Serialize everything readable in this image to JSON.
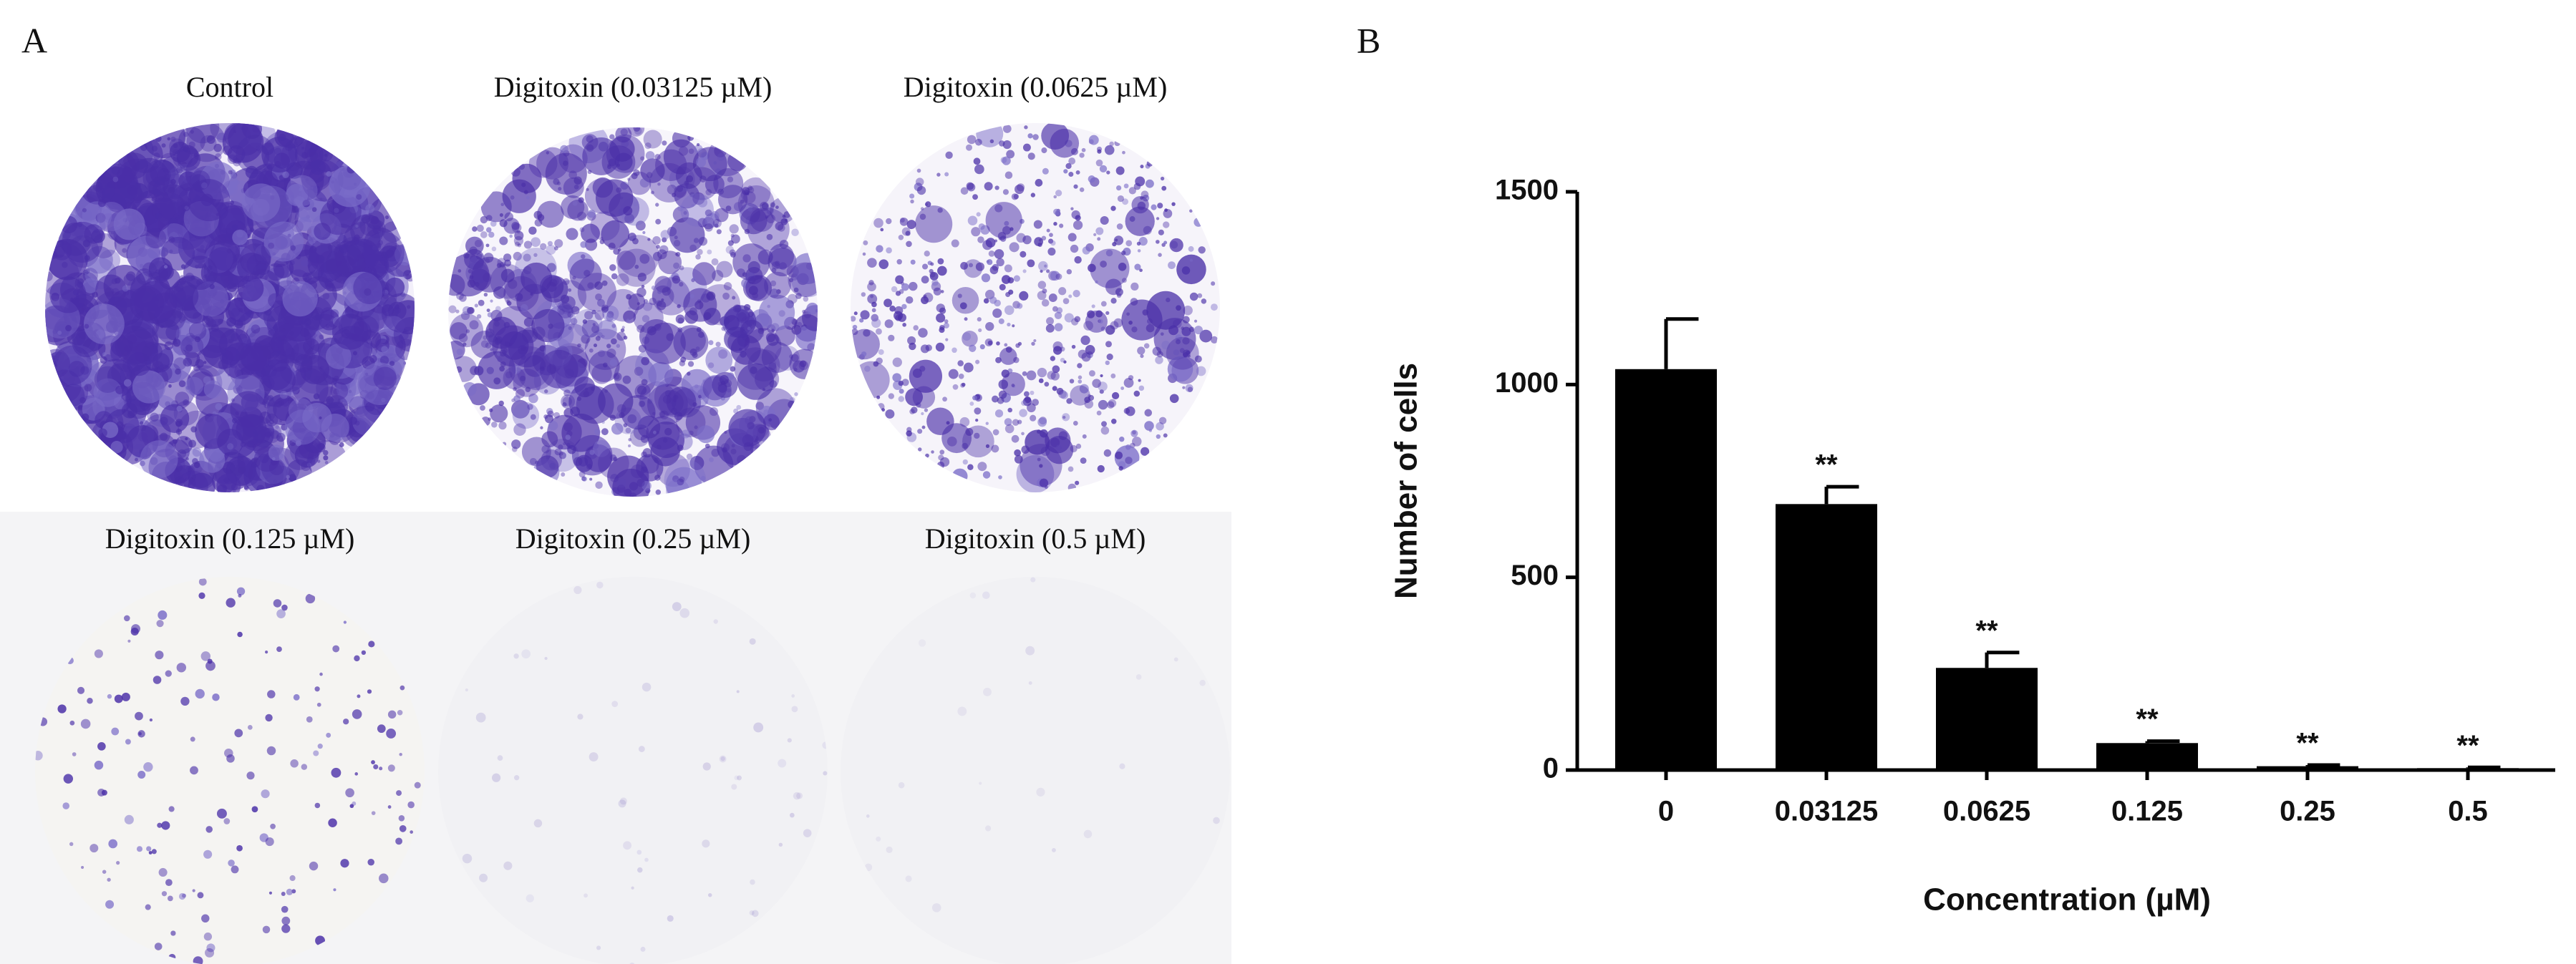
{
  "panel_a": {
    "label": "A",
    "captions": [
      "Control",
      "Digitoxin (0.03125 µM)",
      "Digitoxin (0.0625 µM)",
      "Digitoxin (0.125 µM)",
      "Digitoxin (0.25 µM)",
      "Digitoxin (0.5 µM)"
    ]
  },
  "chart_data": {
    "type": "bar",
    "label": "B",
    "x_label": "Concentration  (µM)",
    "y_label": "Number of cells",
    "categories": [
      "0",
      "0.03125",
      "0.0625",
      "0.125",
      "0.25",
      "0.5"
    ],
    "values": [
      1040,
      690,
      265,
      70,
      10,
      5
    ],
    "errors": [
      130,
      45,
      40,
      5,
      3,
      2
    ],
    "annotations": [
      null,
      "**",
      "**",
      "**",
      "**",
      "**"
    ],
    "color": "#000000",
    "ylim": [
      0,
      1500
    ],
    "yticks": [
      0,
      500,
      1000,
      1500
    ]
  }
}
